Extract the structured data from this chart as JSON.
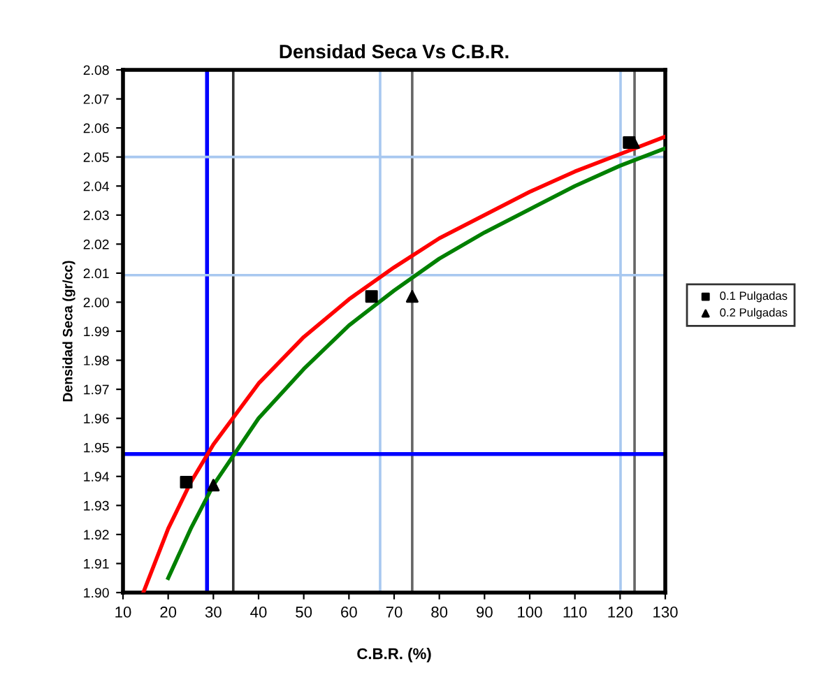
{
  "chart_data": {
    "type": "scatter",
    "title": "Densidad Seca Vs C.B.R.",
    "xlabel": "C.B.R. (%)",
    "ylabel": "Densidad Seca (gr/cc)",
    "xlim": [
      10,
      130
    ],
    "xticks": [
      10,
      20,
      30,
      40,
      50,
      60,
      70,
      80,
      90,
      100,
      110,
      120,
      130
    ],
    "ylim": [
      1.9,
      2.08
    ],
    "yticks": [
      {
        "value": 1.9,
        "label": "1.90"
      },
      {
        "value": 1.91,
        "label": "1.91"
      },
      {
        "value": 1.92,
        "label": "1.92"
      },
      {
        "value": 1.93,
        "label": "1.93"
      },
      {
        "value": 1.94,
        "label": "1.94"
      },
      {
        "value": 1.95,
        "label": "1.95"
      },
      {
        "value": 1.96,
        "label": "1.96"
      },
      {
        "value": 1.97,
        "label": "1.97"
      },
      {
        "value": 1.98,
        "label": "1.98"
      },
      {
        "value": 1.99,
        "label": "1.99"
      },
      {
        "value": 2.0,
        "label": "2.00"
      },
      {
        "value": 2.01,
        "label": "2.01"
      },
      {
        "value": 2.02,
        "label": "2.02"
      },
      {
        "value": 2.03,
        "label": "2.03"
      },
      {
        "value": 2.04,
        "label": "2.04"
      },
      {
        "value": 2.05,
        "label": "2.05"
      },
      {
        "value": 2.06,
        "label": "2.06"
      },
      {
        "value": 2.07,
        "label": "2.07"
      },
      {
        "value": 2.08,
        "label": "2.08"
      }
    ],
    "grid": false,
    "legend": "right",
    "series": [
      {
        "name": "0.1 Pulgadas",
        "marker": "square",
        "color": "#000000",
        "x": [
          24,
          65,
          122
        ],
        "values": [
          1.938,
          2.002,
          2.055
        ]
      },
      {
        "name": "0.2 Pulgadas",
        "marker": "triangle",
        "color": "#000000",
        "x": [
          30,
          74,
          123
        ],
        "values": [
          1.937,
          2.002,
          2.055
        ]
      },
      {
        "type": "line",
        "marker": "none",
        "color": "#ff0000",
        "x": [
          14.5,
          20,
          25,
          30,
          40,
          50,
          60,
          70,
          80,
          90,
          100,
          110,
          120,
          130
        ],
        "values": [
          1.9,
          1.922,
          1.938,
          1.951,
          1.972,
          1.988,
          2.001,
          2.012,
          2.022,
          2.03,
          2.038,
          2.045,
          2.051,
          2.057
        ]
      },
      {
        "type": "line",
        "marker": "none",
        "color": "#008000",
        "x": [
          20,
          25,
          30,
          40,
          50,
          60,
          70,
          80,
          90,
          100,
          110,
          120,
          130
        ],
        "values": [
          1.905,
          1.922,
          1.937,
          1.96,
          1.977,
          1.992,
          2.004,
          2.015,
          2.024,
          2.032,
          2.04,
          2.047,
          2.053
        ]
      }
    ],
    "ref_lines": [
      {
        "axis": "x",
        "value": 28.6,
        "color": "#0000ff"
      },
      {
        "axis": "x",
        "value": 34.4,
        "color": "#333333"
      },
      {
        "axis": "x",
        "value": 66.9,
        "color": "#a8c8f0"
      },
      {
        "axis": "x",
        "value": 74,
        "color": "#666666"
      },
      {
        "axis": "x",
        "value": 120.1,
        "color": "#a8c8f0"
      },
      {
        "axis": "x",
        "value": 123.2,
        "color": "#666666"
      },
      {
        "axis": "y",
        "value": 1.9477,
        "color": "#0000ff"
      },
      {
        "axis": "y",
        "value": 2.0093,
        "color": "#a8c8f0"
      },
      {
        "axis": "y",
        "value": 2.05,
        "color": "#a8c8f0"
      }
    ]
  }
}
